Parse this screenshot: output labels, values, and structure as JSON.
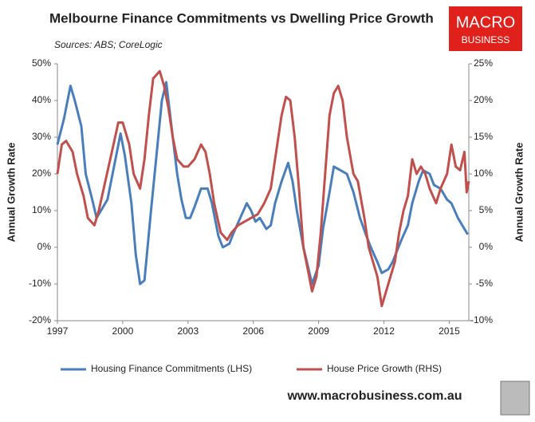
{
  "chart_data": {
    "type": "line",
    "title": "Melbourne Finance Commitments vs Dwelling Price Growth",
    "subtitle": "Sources: ABS; CoreLogic",
    "logo": [
      "MACRO",
      "BUSINESS"
    ],
    "footer": "www.macrobusiness.com.au",
    "ylabel": "Annual Growth Rate",
    "y2label": "Annual Growth Rate",
    "xlim": [
      1997,
      2015.9
    ],
    "xticks": [
      1997,
      2000,
      2003,
      2006,
      2009,
      2012,
      2015
    ],
    "ylim": [
      -20,
      50
    ],
    "yticks": [
      {
        "value": -20,
        "label": "-20%"
      },
      {
        "value": -10,
        "label": "-10%"
      },
      {
        "value": 0,
        "label": "0%"
      },
      {
        "value": 10,
        "label": "10%"
      },
      {
        "value": 20,
        "label": "20%"
      },
      {
        "value": 30,
        "label": "30%"
      },
      {
        "value": 40,
        "label": "40%"
      },
      {
        "value": 50,
        "label": "50%"
      }
    ],
    "y2lim": [
      -10,
      25
    ],
    "y2ticks": [
      {
        "value": -10,
        "label": "-10%"
      },
      {
        "value": -5,
        "label": "-5%"
      },
      {
        "value": 0,
        "label": "0%"
      },
      {
        "value": 5,
        "label": "5%"
      },
      {
        "value": 10,
        "label": "10%"
      },
      {
        "value": 15,
        "label": "15%"
      },
      {
        "value": 20,
        "label": "20%"
      },
      {
        "value": 25,
        "label": "25%"
      }
    ],
    "legend": "bottom",
    "series": [
      {
        "name": "Housing Finance Commitments (LHS)",
        "color": "#4a7ebb",
        "axis": "y",
        "x": [
          1997.0,
          1997.3,
          1997.6,
          1997.8,
          1998.1,
          1998.3,
          1998.6,
          1998.8,
          1999.0,
          1999.3,
          1999.6,
          1999.9,
          2000.1,
          2000.4,
          2000.6,
          2000.8,
          2001.0,
          2001.3,
          2001.6,
          2001.8,
          2002.0,
          2002.3,
          2002.5,
          2002.7,
          2002.9,
          2003.1,
          2003.3,
          2003.6,
          2003.9,
          2004.1,
          2004.4,
          2004.6,
          2004.9,
          2005.1,
          2005.4,
          2005.7,
          2005.9,
          2006.1,
          2006.3,
          2006.6,
          2006.8,
          2007.0,
          2007.3,
          2007.6,
          2007.8,
          2008.0,
          2008.3,
          2008.5,
          2008.7,
          2009.0,
          2009.2,
          2009.5,
          2009.7,
          2010.0,
          2010.3,
          2010.6,
          2010.9,
          2011.2,
          2011.4,
          2011.7,
          2011.9,
          2012.2,
          2012.4,
          2012.6,
          2012.8,
          2013.1,
          2013.3,
          2013.6,
          2013.8,
          2014.1,
          2014.3,
          2014.6,
          2014.9,
          2015.1,
          2015.4,
          2015.7,
          2015.85
        ],
        "values": [
          28,
          35,
          44,
          40,
          33,
          20,
          13,
          8,
          10,
          13,
          22,
          31,
          25,
          12,
          -2,
          -10,
          -9,
          10,
          28,
          40,
          45,
          30,
          20,
          13,
          8,
          8,
          11,
          16,
          16,
          12,
          3,
          0,
          1,
          4,
          8,
          12,
          10,
          7,
          8,
          5,
          6,
          12,
          18,
          23,
          18,
          10,
          0,
          -5,
          -10,
          -5,
          5,
          15,
          22,
          21,
          20,
          15,
          8,
          3,
          0,
          -4,
          -7,
          -6,
          -4,
          -1,
          2,
          6,
          12,
          18,
          21,
          20,
          17,
          16,
          13,
          12,
          8,
          5,
          3.5
        ]
      },
      {
        "name": "House Price Growth (RHS)",
        "color": "#c0504d",
        "axis": "y2",
        "x": [
          1997.0,
          1997.2,
          1997.4,
          1997.7,
          1997.9,
          1998.2,
          1998.4,
          1998.7,
          1998.9,
          1999.2,
          1999.5,
          1999.8,
          2000.0,
          2000.3,
          2000.5,
          2000.8,
          2001.0,
          2001.2,
          2001.4,
          2001.7,
          2001.9,
          2002.1,
          2002.3,
          2002.5,
          2002.8,
          2003.0,
          2003.3,
          2003.6,
          2003.8,
          2004.0,
          2004.2,
          2004.5,
          2004.8,
          2005.0,
          2005.3,
          2005.6,
          2005.9,
          2006.2,
          2006.5,
          2006.8,
          2007.0,
          2007.3,
          2007.5,
          2007.7,
          2007.9,
          2008.1,
          2008.3,
          2008.5,
          2008.7,
          2008.9,
          2009.1,
          2009.3,
          2009.5,
          2009.7,
          2009.9,
          2010.1,
          2010.3,
          2010.6,
          2010.8,
          2011.1,
          2011.3,
          2011.5,
          2011.7,
          2011.9,
          2012.1,
          2012.3,
          2012.5,
          2012.7,
          2012.9,
          2013.1,
          2013.3,
          2013.5,
          2013.7,
          2013.9,
          2014.1,
          2014.4,
          2014.6,
          2014.9,
          2015.1,
          2015.3,
          2015.5,
          2015.7,
          2015.8,
          2015.9
        ],
        "values": [
          10,
          14,
          14.5,
          13,
          10,
          7,
          4,
          3,
          5,
          9,
          13,
          17,
          17,
          14,
          10,
          8,
          12,
          18,
          23,
          24,
          22,
          19,
          15,
          12,
          11,
          11,
          12,
          14,
          13,
          10,
          6,
          2,
          1,
          2,
          3,
          3.5,
          4,
          4.5,
          6,
          8,
          12,
          18,
          20.5,
          20,
          15,
          8,
          0,
          -3,
          -6,
          -4,
          2,
          10,
          18,
          21,
          22,
          20,
          15,
          10,
          9,
          4,
          0,
          -2,
          -4,
          -8,
          -6,
          -4,
          -2,
          2,
          5,
          7,
          12,
          10,
          11,
          10,
          8,
          6,
          8,
          10,
          14,
          11,
          10.5,
          13,
          7.5,
          9
        ]
      }
    ]
  }
}
